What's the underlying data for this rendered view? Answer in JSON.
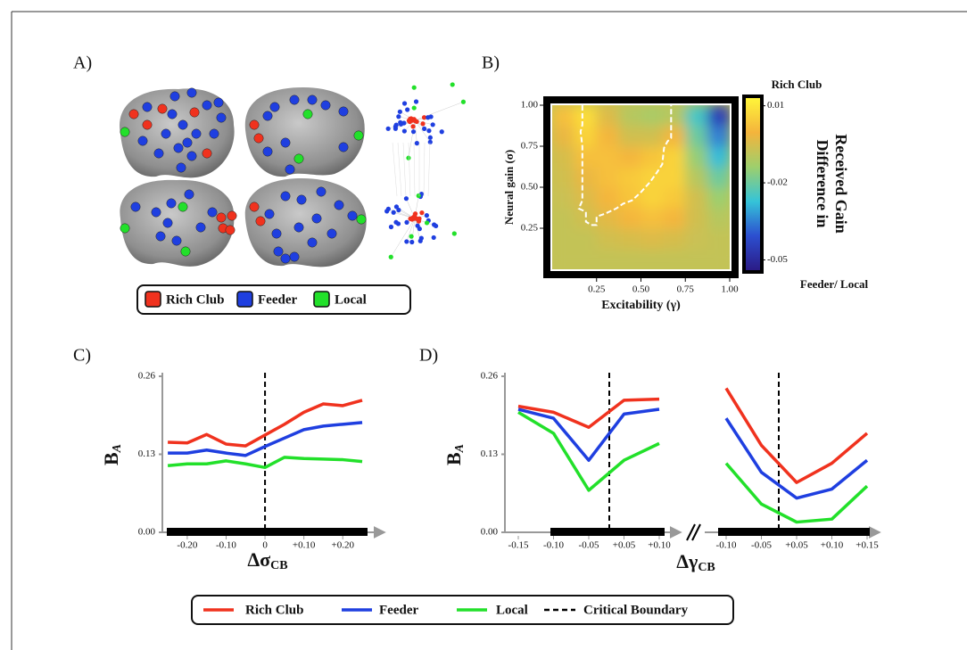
{
  "panels": [
    "A)",
    "B)",
    "C)",
    "D)"
  ],
  "legend_a": [
    {
      "name": "Rich Club",
      "color": "#f0321e"
    },
    {
      "name": "Feeder",
      "color": "#1f3fe0"
    },
    {
      "name": "Local",
      "color": "#22e02a"
    }
  ],
  "legend_boundary": "Critical Boundary",
  "chart_data": [
    {
      "type": "heatmap",
      "xlabel": "Excitability (γ)",
      "ylabel": "Neural gain (σ)",
      "colorbar_top": "Rich Club",
      "colorbar_title": [
        "Difference in",
        "Received Gain"
      ],
      "colorbar_bottom": "Feeder/ Local",
      "xlim": [
        0,
        1
      ],
      "ylim": [
        0,
        1
      ],
      "xticks": [
        0.25,
        {
          "value": 0.5,
          "label": "0.50"
        },
        0.75,
        {
          "value": 1,
          "label": "1.00"
        }
      ],
      "yticks": [
        0.25,
        {
          "value": 0.5,
          "label": "0.50"
        },
        0.75,
        {
          "value": 1,
          "label": "1.00"
        }
      ],
      "zlim": [
        -0.054,
        0.013
      ],
      "zticks": [
        0.01,
        -0.02,
        -0.05
      ],
      "colormap": [
        "#2b1b86",
        "#2c4fd0",
        "#35c4d8",
        "#9ecf6c",
        "#f4b43c",
        "#fff53a"
      ],
      "x": [
        0.0625,
        0.1875,
        0.3125,
        0.4375,
        0.5625,
        0.6875,
        0.8125,
        0.9375
      ],
      "y": [
        0.0625,
        0.1875,
        0.3125,
        0.4375,
        0.5625,
        0.6875,
        0.8125,
        0.9375
      ],
      "z": [
        [
          -0.008,
          -0.008,
          -0.008,
          -0.008,
          -0.008,
          -0.008,
          -0.008,
          -0.008
        ],
        [
          -0.008,
          -0.008,
          -0.006,
          -0.005,
          -0.004,
          -0.005,
          -0.007,
          -0.008
        ],
        [
          -0.008,
          -0.006,
          -0.003,
          0.0,
          0.002,
          0.0,
          -0.006,
          -0.01
        ],
        [
          -0.007,
          -0.004,
          0.0,
          0.003,
          0.006,
          0.004,
          -0.006,
          -0.014
        ],
        [
          -0.006,
          -0.002,
          0.002,
          0.004,
          0.006,
          0.006,
          -0.01,
          -0.02
        ],
        [
          -0.005,
          0.002,
          0.002,
          0.0,
          0.003,
          0.006,
          -0.015,
          -0.028
        ],
        [
          -0.002,
          0.006,
          0.0,
          -0.006,
          -0.006,
          0.0,
          -0.02,
          -0.035
        ],
        [
          0.002,
          0.008,
          -0.004,
          -0.01,
          -0.012,
          -0.01,
          -0.025,
          -0.045
        ]
      ],
      "boundary": {
        "color": "#ffffff",
        "x": [
          0.17,
          0.17,
          0.16,
          0.17,
          0.17,
          0.15,
          0.19,
          0.19,
          0.22,
          0.25,
          0.25,
          0.3,
          0.36,
          0.4,
          0.45,
          0.5,
          0.55,
          0.59,
          0.62,
          0.63,
          0.65,
          0.67,
          0.67
        ],
        "y": [
          1.0,
          0.88,
          0.84,
          0.75,
          0.42,
          0.37,
          0.35,
          0.29,
          0.27,
          0.27,
          0.32,
          0.34,
          0.37,
          0.4,
          0.42,
          0.47,
          0.53,
          0.59,
          0.64,
          0.74,
          0.78,
          0.8,
          1.0
        ]
      }
    },
    {
      "type": "line",
      "ylabel": "B",
      "ylabel_sub": "A",
      "xlabel": "Δσ",
      "xlabel_sub": "CB",
      "xlim": [
        -0.264,
        0.305
      ],
      "ylim": [
        0,
        0.26
      ],
      "yticks": [
        {
          "value": 0,
          "label": "0.00"
        },
        0.13,
        0.26
      ],
      "xticks": [
        {
          "value": -0.2,
          "label": "-0.20"
        },
        {
          "value": -0.1,
          "label": "-0.10"
        },
        0,
        {
          "value": 0.1,
          "label": "+0.10"
        },
        {
          "value": 0.2,
          "label": "+0.20"
        }
      ],
      "critical_boundary": 0,
      "x": [
        -0.25,
        -0.2,
        -0.15,
        -0.1,
        -0.05,
        0,
        0.05,
        0.1,
        0.15,
        0.2,
        0.25
      ],
      "series": [
        {
          "name": "Rich Club",
          "color": "#f0321e",
          "values": [
            0.15,
            0.149,
            0.163,
            0.147,
            0.144,
            0.162,
            0.18,
            0.2,
            0.214,
            0.211,
            0.22
          ]
        },
        {
          "name": "Feeder",
          "color": "#1f3fe0",
          "values": [
            0.132,
            0.132,
            0.137,
            0.132,
            0.128,
            0.143,
            0.157,
            0.171,
            0.177,
            0.18,
            0.183
          ]
        },
        {
          "name": "Local",
          "color": "#22e02a",
          "values": [
            0.111,
            0.114,
            0.114,
            0.119,
            0.114,
            0.108,
            0.125,
            0.123,
            0.122,
            0.121,
            0.118
          ]
        }
      ]
    },
    {
      "type": "line",
      "ylabel": "B",
      "ylabel_sub": "A",
      "ylim": [
        0,
        0.26
      ],
      "yticks": [
        {
          "value": 0,
          "label": "0.00"
        },
        0.13,
        0.26
      ],
      "categories": [
        "-0.15",
        "-0.10",
        "-0.05",
        "+0.05",
        "+0.10"
      ],
      "series": [
        {
          "name": "Rich Club",
          "color": "#f0321e",
          "values": [
            0.21,
            0.2,
            0.175,
            0.22,
            0.222
          ]
        },
        {
          "name": "Feeder",
          "color": "#1f3fe0",
          "values": [
            0.205,
            0.19,
            0.12,
            0.197,
            0.205
          ]
        },
        {
          "name": "Local",
          "color": "#22e02a",
          "values": [
            0.2,
            0.165,
            0.07,
            0.12,
            0.148
          ]
        }
      ]
    },
    {
      "type": "line",
      "xlabel": "Δγ",
      "xlabel_sub": "CB",
      "ylim": [
        0,
        0.26
      ],
      "categories": [
        "-0.10",
        "-0.05",
        "+0.05",
        "+0.10",
        "+0.15"
      ],
      "series": [
        {
          "name": "Rich Club",
          "color": "#f0321e",
          "values": [
            0.24,
            0.145,
            0.083,
            0.115,
            0.165
          ]
        },
        {
          "name": "Feeder",
          "color": "#1f3fe0",
          "values": [
            0.19,
            0.1,
            0.057,
            0.072,
            0.12
          ]
        },
        {
          "name": "Local",
          "color": "#22e02a",
          "values": [
            0.115,
            0.047,
            0.017,
            0.022,
            0.077
          ]
        }
      ]
    }
  ]
}
